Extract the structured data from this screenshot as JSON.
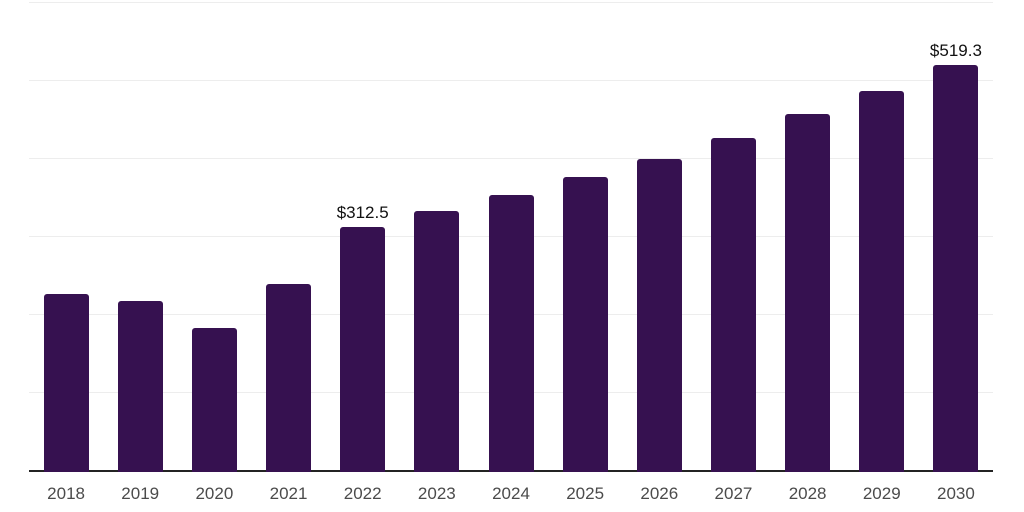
{
  "chart_data": {
    "type": "bar",
    "title": "",
    "xlabel": "",
    "ylabel": "",
    "categories": [
      "2018",
      "2019",
      "2020",
      "2021",
      "2022",
      "2023",
      "2024",
      "2025",
      "2026",
      "2027",
      "2028",
      "2029",
      "2030"
    ],
    "values": [
      226.4,
      217.1,
      182.9,
      239.6,
      312.5,
      333.0,
      353.5,
      376.5,
      399.5,
      426.0,
      457.0,
      486.5,
      519.3
    ],
    "data_labels": [
      {
        "index": 4,
        "text": "$312.5"
      },
      {
        "index": 12,
        "text": "$519.3"
      }
    ],
    "ylim": [
      0,
      600
    ],
    "ytick_interval": 100,
    "y_axis_labels_visible": false,
    "grid": "horizontal",
    "legend": "none",
    "colors": {
      "bar": "#361150",
      "gridline": "#ededed",
      "axis_line": "#232323",
      "tick_label": "#4b4b4b",
      "data_label": "#111111",
      "background": "#ffffff"
    }
  }
}
